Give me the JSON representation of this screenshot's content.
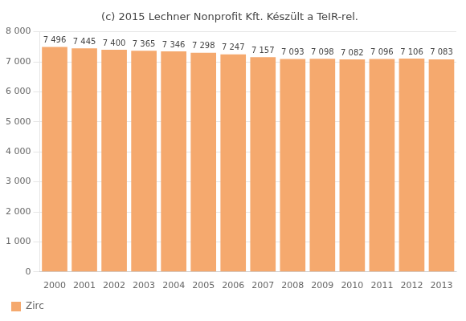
{
  "chart_data": {
    "type": "bar",
    "title": "(c) 2015 Lechner Nonprofit Kft. Készült a TeIR-rel.",
    "categories": [
      "2000",
      "2001",
      "2002",
      "2003",
      "2004",
      "2005",
      "2006",
      "2007",
      "2008",
      "2009",
      "2010",
      "2011",
      "2012",
      "2013"
    ],
    "series": [
      {
        "name": "Zirc",
        "color": "#F5A96E",
        "values": [
          7496,
          7445,
          7400,
          7365,
          7346,
          7298,
          7247,
          7157,
          7093,
          7098,
          7082,
          7096,
          7106,
          7083
        ],
        "value_labels": [
          "7 496",
          "7 445",
          "7 400",
          "7 365",
          "7 346",
          "7 298",
          "7 247",
          "7 157",
          "7 093",
          "7 098",
          "7 082",
          "7 096",
          "7 106",
          "7 083"
        ]
      }
    ],
    "ylim": [
      0,
      8000
    ],
    "yticks": [
      0,
      {
        "value": 1000,
        "label": "1 000"
      },
      {
        "value": 2000,
        "label": "2 000"
      },
      {
        "value": 3000,
        "label": "3 000"
      },
      {
        "value": 4000,
        "label": "4 000"
      },
      {
        "value": 5000,
        "label": "5 000"
      },
      {
        "value": 6000,
        "label": "6 000"
      },
      {
        "value": 7000,
        "label": "7 000"
      },
      {
        "value": 8000,
        "label": "8 000"
      }
    ],
    "grid": true,
    "legend": "bottom",
    "data_labels": true
  }
}
